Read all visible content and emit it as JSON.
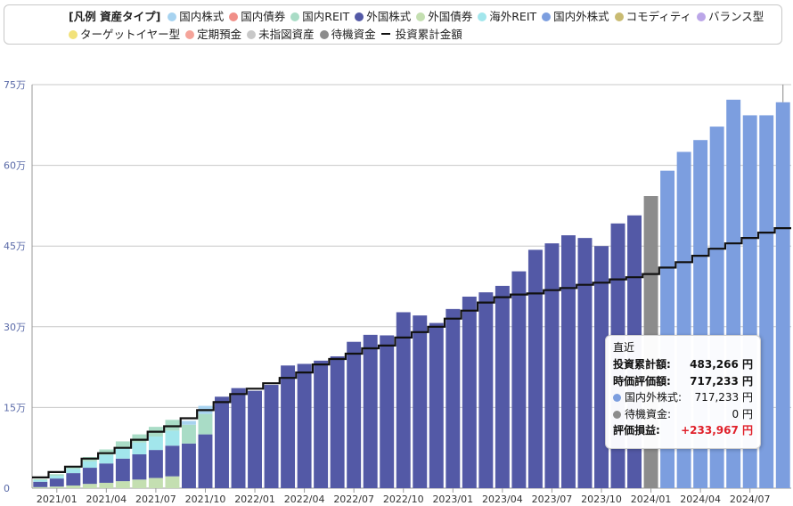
{
  "legend": {
    "title": "[凡例 資産タイプ]",
    "items": [
      {
        "label": "国内株式",
        "color": "#a7d3f0",
        "marker": "dot"
      },
      {
        "label": "国内債券",
        "color": "#f08f88",
        "marker": "dot"
      },
      {
        "label": "国内REIT",
        "color": "#a9dcc6",
        "marker": "dot"
      },
      {
        "label": "外国株式",
        "color": "#5359a6",
        "marker": "dot"
      },
      {
        "label": "外国債券",
        "color": "#c4dfb1",
        "marker": "dot"
      },
      {
        "label": "海外REIT",
        "color": "#a2e6ec",
        "marker": "dot"
      },
      {
        "label": "国内外株式",
        "color": "#7c9edf",
        "marker": "dot"
      },
      {
        "label": "コモディティ",
        "color": "#c9bb72",
        "marker": "dot"
      },
      {
        "label": "バランス型",
        "color": "#bba6e8",
        "marker": "dot"
      },
      {
        "label": "ターゲットイヤー型",
        "color": "#f2e27a",
        "marker": "dot"
      },
      {
        "label": "定期預金",
        "color": "#f5a49a",
        "marker": "dot"
      },
      {
        "label": "未指図資産",
        "color": "#c8c8c8",
        "marker": "dot"
      },
      {
        "label": "待機資金",
        "color": "#8c8c8c",
        "marker": "dot"
      },
      {
        "label": "投資累計金額",
        "color": "#111111",
        "marker": "line"
      }
    ]
  },
  "tooltip": {
    "title": "直近",
    "invested_label": "投資累計額:",
    "invested_value": "483,266 円",
    "valuation_label": "時価評価額:",
    "valuation_value": "717,233 円",
    "item1_label": "国内外株式:",
    "item1_value": "717,233 円",
    "item1_color": "#7c9edf",
    "item2_label": "待機資金:",
    "item2_value": "0 円",
    "item2_color": "#8c8c8c",
    "gain_label": "評価損益:",
    "gain_value": "+233,967 円"
  },
  "chart_data": {
    "type": "bar",
    "stacked": true,
    "y_axis": {
      "min": 0,
      "max": 750000,
      "ticks": [
        0,
        150000,
        300000,
        450000,
        600000,
        750000
      ],
      "tick_labels": [
        "0",
        "15万",
        "30万",
        "45万",
        "60万",
        "75万"
      ]
    },
    "categories": [
      "2020/12",
      "2021/01",
      "2021/02",
      "2021/03",
      "2021/04",
      "2021/05",
      "2021/06",
      "2021/07",
      "2021/08",
      "2021/09",
      "2021/10",
      "2021/11",
      "2021/12",
      "2022/01",
      "2022/02",
      "2022/03",
      "2022/04",
      "2022/05",
      "2022/06",
      "2022/07",
      "2022/08",
      "2022/09",
      "2022/10",
      "2022/11",
      "2022/12",
      "2023/01",
      "2023/02",
      "2023/03",
      "2023/04",
      "2023/05",
      "2023/06",
      "2023/07",
      "2023/08",
      "2023/09",
      "2023/10",
      "2023/11",
      "2023/12",
      "2024/01",
      "2024/02",
      "2024/03",
      "2024/04",
      "2024/05",
      "2024/06",
      "2024/07",
      "2024/08",
      "2024/09"
    ],
    "x_tick_labels": [
      {
        "index": 1,
        "label": "2021/01"
      },
      {
        "index": 4,
        "label": "2021/04"
      },
      {
        "index": 7,
        "label": "2021/07"
      },
      {
        "index": 10,
        "label": "2021/10"
      },
      {
        "index": 13,
        "label": "2022/01"
      },
      {
        "index": 16,
        "label": "2022/04"
      },
      {
        "index": 19,
        "label": "2022/07"
      },
      {
        "index": 22,
        "label": "2022/10"
      },
      {
        "index": 25,
        "label": "2023/01"
      },
      {
        "index": 28,
        "label": "2023/04"
      },
      {
        "index": 31,
        "label": "2023/07"
      },
      {
        "index": 34,
        "label": "2023/10"
      },
      {
        "index": 37,
        "label": "2024/01"
      },
      {
        "index": 40,
        "label": "2024/04"
      },
      {
        "index": 43,
        "label": "2024/07"
      }
    ],
    "series": [
      {
        "name": "外国債券",
        "color": "#c4dfb1",
        "values": [
          2000,
          3000,
          5000,
          8000,
          10000,
          13000,
          16000,
          19000,
          22000,
          0,
          0,
          0,
          0,
          0,
          0,
          0,
          0,
          0,
          0,
          0,
          0,
          0,
          0,
          0,
          0,
          0,
          0,
          0,
          0,
          0,
          0,
          0,
          0,
          0,
          0,
          0,
          0,
          0,
          0,
          0,
          0,
          0,
          0,
          0,
          0,
          0
        ]
      },
      {
        "name": "外国株式",
        "color": "#5359a6",
        "values": [
          10000,
          15000,
          23000,
          30000,
          36000,
          42000,
          47000,
          52000,
          57000,
          83000,
          100000,
          170000,
          186000,
          181000,
          192000,
          228000,
          231000,
          237000,
          245000,
          272000,
          285000,
          284000,
          327000,
          321000,
          307000,
          333000,
          356000,
          364000,
          376000,
          403000,
          443000,
          455000,
          470000,
          465000,
          450000,
          492000,
          507000,
          0,
          0,
          0,
          0,
          0,
          0,
          0,
          0,
          0
        ]
      },
      {
        "name": "海外REIT",
        "color": "#a2e6ec",
        "values": [
          3000,
          5000,
          8000,
          12000,
          16000,
          19000,
          22000,
          25000,
          28000,
          0,
          0,
          0,
          0,
          0,
          0,
          0,
          0,
          0,
          0,
          0,
          0,
          0,
          0,
          0,
          0,
          0,
          0,
          0,
          0,
          0,
          0,
          0,
          0,
          0,
          0,
          0,
          0,
          0,
          0,
          0,
          0,
          0,
          0,
          0,
          0,
          0
        ]
      },
      {
        "name": "国内REIT",
        "color": "#a9dcc6",
        "values": [
          2000,
          3000,
          5000,
          8000,
          10000,
          13000,
          15000,
          18000,
          20000,
          35000,
          38000,
          0,
          0,
          0,
          0,
          0,
          0,
          0,
          0,
          0,
          0,
          0,
          0,
          0,
          0,
          0,
          0,
          0,
          0,
          0,
          0,
          0,
          0,
          0,
          0,
          0,
          0,
          0,
          0,
          0,
          0,
          0,
          0,
          0,
          0,
          0
        ]
      },
      {
        "name": "国内株式",
        "color": "#a7d3f0",
        "values": [
          0,
          0,
          0,
          0,
          0,
          0,
          0,
          0,
          0,
          7000,
          15000,
          0,
          0,
          0,
          0,
          0,
          0,
          0,
          0,
          0,
          0,
          0,
          0,
          0,
          0,
          0,
          0,
          0,
          0,
          0,
          0,
          0,
          0,
          0,
          0,
          0,
          0,
          0,
          0,
          0,
          0,
          0,
          0,
          0,
          0,
          0
        ]
      },
      {
        "name": "待機資金",
        "color": "#8c8c8c",
        "values": [
          0,
          0,
          0,
          0,
          0,
          0,
          0,
          0,
          0,
          0,
          0,
          0,
          0,
          0,
          0,
          0,
          0,
          0,
          0,
          0,
          0,
          0,
          0,
          0,
          0,
          0,
          0,
          0,
          0,
          0,
          0,
          0,
          0,
          0,
          0,
          0,
          0,
          543000,
          0,
          0,
          0,
          0,
          0,
          0,
          0,
          0
        ]
      },
      {
        "name": "国内外株式",
        "color": "#7c9edf",
        "values": [
          0,
          0,
          0,
          0,
          0,
          0,
          0,
          0,
          0,
          0,
          0,
          0,
          0,
          0,
          0,
          0,
          0,
          0,
          0,
          0,
          0,
          0,
          0,
          0,
          0,
          0,
          0,
          0,
          0,
          0,
          0,
          0,
          0,
          0,
          0,
          0,
          0,
          0,
          590000,
          625000,
          647000,
          672000,
          722000,
          693000,
          693000,
          717233
        ]
      }
    ],
    "cumulative_invested": {
      "name": "投資累計金額",
      "color": "#111111",
      "values": [
        20000,
        30000,
        40000,
        55000,
        65000,
        75000,
        90000,
        105000,
        115000,
        130000,
        145000,
        160000,
        175000,
        185000,
        195000,
        205000,
        215000,
        230000,
        240000,
        250000,
        260000,
        265000,
        280000,
        290000,
        300000,
        315000,
        330000,
        345000,
        355000,
        360000,
        362000,
        368000,
        372000,
        378000,
        382000,
        388000,
        392000,
        398000,
        410000,
        420000,
        432000,
        445000,
        455000,
        465000,
        475000,
        483266
      ]
    }
  }
}
